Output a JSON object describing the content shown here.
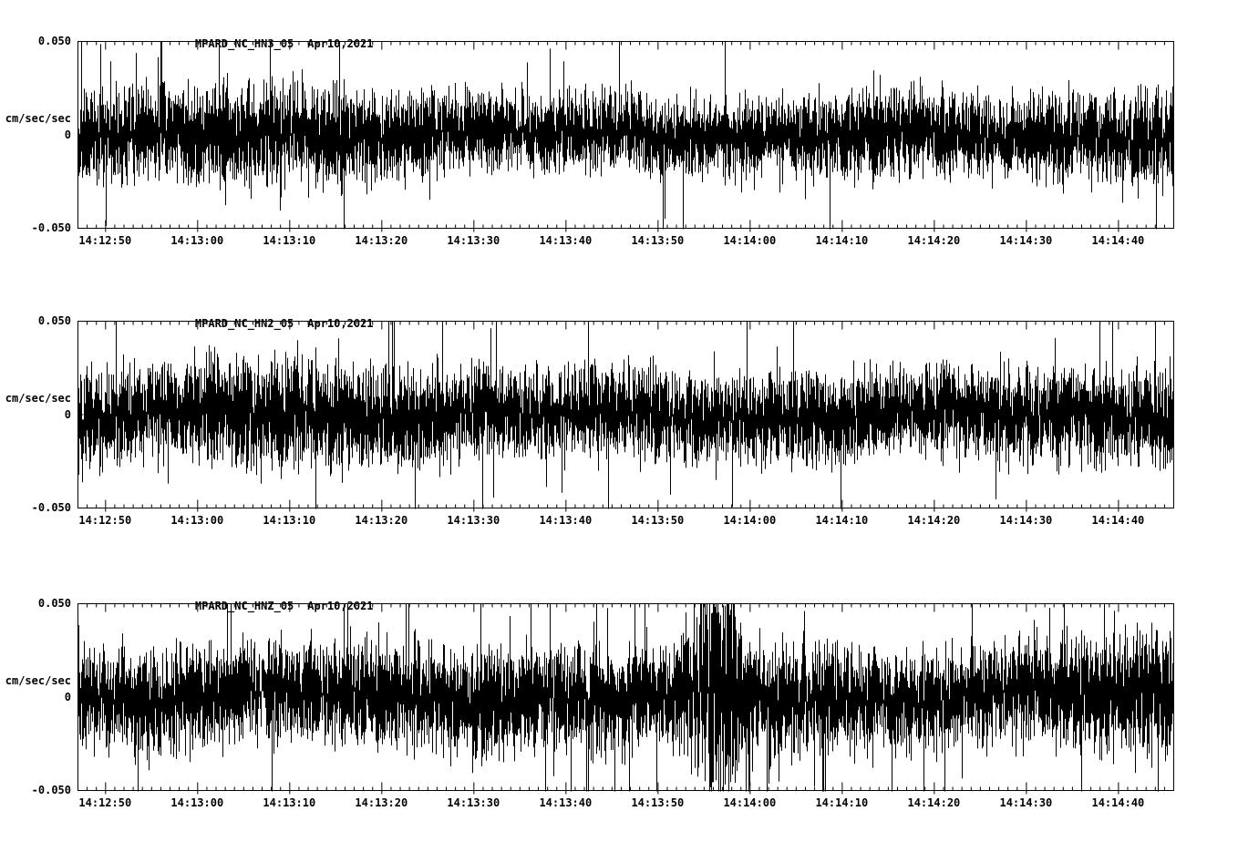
{
  "page": {
    "background": "#ffffff",
    "trace_color": "#000000"
  },
  "chart_data": [
    {
      "type": "line",
      "title": "MPARD_NC_HN3_05",
      "date": "Apr10,2021",
      "ylabel": "cm/sec/sec",
      "ylim": [
        -0.05,
        0.05
      ],
      "yticks": [
        {
          "value": 0.05,
          "label": "0.050"
        },
        {
          "value": 0,
          "label": "0"
        },
        {
          "value": -0.05,
          "label": "-0.050"
        }
      ],
      "xticks": [
        "14:12:50",
        "14:13:00",
        "14:13:10",
        "14:13:20",
        "14:13:30",
        "14:13:40",
        "14:13:50",
        "14:14:00",
        "14:14:10",
        "14:14:20",
        "14:14:30",
        "14:14:40"
      ],
      "x_axis": {
        "total_seconds": 119,
        "first_major_offset_s": 3,
        "major_interval_s": 10,
        "minor_interval_s": 1
      },
      "grid": false,
      "line_color": "#000000",
      "noise": {
        "seed": 20210410,
        "base_amp": 0.0105,
        "spike_prob": 0.015,
        "spike_scale": 2.2,
        "wander_amp": 0.004,
        "envelope": [
          1.05,
          1.2,
          1.25,
          1.15,
          1.0,
          0.95,
          1.0,
          0.92,
          1.0,
          1.05,
          0.98,
          1.05,
          1.2
        ]
      },
      "events": []
    },
    {
      "type": "line",
      "title": "MPARD_NC_HN2_05",
      "date": "Apr10,2021",
      "ylabel": "cm/sec/sec",
      "ylim": [
        -0.05,
        0.05
      ],
      "yticks": [
        {
          "value": 0.05,
          "label": "0.050"
        },
        {
          "value": 0,
          "label": "0"
        },
        {
          "value": -0.05,
          "label": "-0.050"
        }
      ],
      "xticks": [
        "14:12:50",
        "14:13:00",
        "14:13:10",
        "14:13:20",
        "14:13:30",
        "14:13:40",
        "14:13:50",
        "14:14:00",
        "14:14:10",
        "14:14:20",
        "14:14:30",
        "14:14:40"
      ],
      "x_axis": {
        "total_seconds": 119,
        "first_major_offset_s": 3,
        "major_interval_s": 10,
        "minor_interval_s": 1
      },
      "grid": false,
      "line_color": "#000000",
      "noise": {
        "seed": 7392,
        "base_amp": 0.0112,
        "spike_prob": 0.013,
        "spike_scale": 2.2,
        "wander_amp": 0.004,
        "envelope": [
          1.15,
          1.05,
          1.28,
          1.18,
          1.05,
          1.02,
          1.05,
          1.0,
          1.12,
          0.95,
          1.08,
          1.0,
          1.15
        ]
      },
      "events": []
    },
    {
      "type": "line",
      "title": "MPARD_NC_HNZ_05",
      "date": "Apr10,2021",
      "ylabel": "cm/sec/sec",
      "ylim": [
        -0.05,
        0.05
      ],
      "yticks": [
        {
          "value": 0.05,
          "label": "0.050"
        },
        {
          "value": 0,
          "label": "0"
        },
        {
          "value": -0.05,
          "label": "-0.050"
        }
      ],
      "xticks": [
        "14:12:50",
        "14:13:00",
        "14:13:10",
        "14:13:20",
        "14:13:30",
        "14:13:40",
        "14:13:50",
        "14:14:00",
        "14:14:10",
        "14:14:20",
        "14:14:30",
        "14:14:40"
      ],
      "x_axis": {
        "total_seconds": 119,
        "first_major_offset_s": 3,
        "major_interval_s": 10,
        "minor_interval_s": 1
      },
      "grid": false,
      "line_color": "#000000",
      "noise": {
        "seed": 55121,
        "base_amp": 0.0125,
        "spike_prob": 0.02,
        "spike_scale": 2.3,
        "wander_amp": 0.005,
        "envelope": [
          1.0,
          1.08,
          1.02,
          1.05,
          1.1,
          1.05,
          1.0,
          1.15,
          1.12,
          1.05,
          1.0,
          1.15,
          1.3
        ]
      },
      "events": [
        {
          "frac": 0.585,
          "width": 0.02,
          "gain": 1.5,
          "peak": 0.05,
          "time": "14:13:57"
        }
      ]
    }
  ]
}
